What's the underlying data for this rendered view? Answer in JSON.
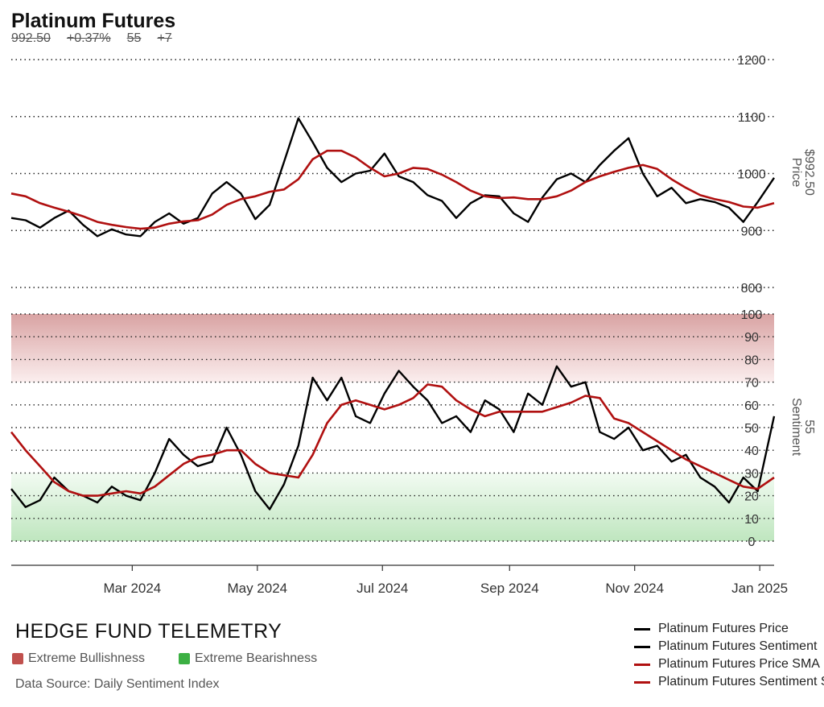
{
  "header": {
    "title": "Platinum Futures",
    "price": "992.50",
    "change_pct": "+0.37%",
    "sentiment": "55",
    "sentiment_change": "+7"
  },
  "footer": {
    "brand": "HEDGE FUND TELEMETRY",
    "key_bullish": "Extreme Bullishness",
    "key_bearish": "Extreme Bearishness",
    "key_bullish_color": "#c0504d",
    "key_bearish_color": "#3cb043",
    "source": "Data Source: Daily Sentiment Index"
  },
  "legend": [
    {
      "label": "Platinum Futures Price",
      "color": "#000000"
    },
    {
      "label": "Platinum Futures Sentiment",
      "color": "#000000"
    },
    {
      "label": "Platinum Futures Price SMA",
      "color": "#b01010"
    },
    {
      "label": "Platinum Futures Sentiment SMA",
      "color": "#b01010"
    }
  ],
  "chart_data": [
    {
      "type": "line",
      "panel": "price",
      "ylabel": "Price",
      "last_value_label": "$992.50",
      "ylim": [
        800,
        1200
      ],
      "yticks": [
        800,
        900,
        1000,
        1100,
        1200
      ],
      "x_ticks": [
        "Mar 2024",
        "May 2024",
        "Jul 2024",
        "Sep 2024",
        "Nov 2024",
        "Jan 2025"
      ],
      "x_tick_dates": [
        "2024-03-01",
        "2024-05-01",
        "2024-07-01",
        "2024-09-01",
        "2024-11-01",
        "2025-01-01"
      ],
      "x_range": [
        "2024-01-02",
        "2025-01-08"
      ],
      "grid": true,
      "series": [
        {
          "name": "Platinum Futures Price",
          "color": "#000000",
          "points": [
            [
              "2024-01-02",
              922
            ],
            [
              "2024-01-09",
              918
            ],
            [
              "2024-01-16",
              905
            ],
            [
              "2024-01-23",
              922
            ],
            [
              "2024-01-30",
              935
            ],
            [
              "2024-02-06",
              910
            ],
            [
              "2024-02-13",
              890
            ],
            [
              "2024-02-20",
              902
            ],
            [
              "2024-02-27",
              893
            ],
            [
              "2024-03-05",
              890
            ],
            [
              "2024-03-12",
              915
            ],
            [
              "2024-03-19",
              930
            ],
            [
              "2024-03-26",
              912
            ],
            [
              "2024-04-02",
              922
            ],
            [
              "2024-04-09",
              965
            ],
            [
              "2024-04-16",
              985
            ],
            [
              "2024-04-23",
              965
            ],
            [
              "2024-04-30",
              920
            ],
            [
              "2024-05-07",
              945
            ],
            [
              "2024-05-14",
              1020
            ],
            [
              "2024-05-21",
              1097
            ],
            [
              "2024-05-28",
              1055
            ],
            [
              "2024-06-04",
              1010
            ],
            [
              "2024-06-11",
              985
            ],
            [
              "2024-06-18",
              1000
            ],
            [
              "2024-06-25",
              1005
            ],
            [
              "2024-07-02",
              1035
            ],
            [
              "2024-07-09",
              995
            ],
            [
              "2024-07-16",
              985
            ],
            [
              "2024-07-23",
              962
            ],
            [
              "2024-07-30",
              952
            ],
            [
              "2024-08-06",
              922
            ],
            [
              "2024-08-13",
              948
            ],
            [
              "2024-08-20",
              962
            ],
            [
              "2024-08-27",
              960
            ],
            [
              "2024-09-03",
              930
            ],
            [
              "2024-09-10",
              915
            ],
            [
              "2024-09-17",
              958
            ],
            [
              "2024-09-24",
              990
            ],
            [
              "2024-10-01",
              1000
            ],
            [
              "2024-10-08",
              985
            ],
            [
              "2024-10-15",
              1015
            ],
            [
              "2024-10-22",
              1040
            ],
            [
              "2024-10-29",
              1062
            ],
            [
              "2024-11-05",
              1000
            ],
            [
              "2024-11-12",
              960
            ],
            [
              "2024-11-19",
              975
            ],
            [
              "2024-11-26",
              948
            ],
            [
              "2024-12-03",
              955
            ],
            [
              "2024-12-10",
              950
            ],
            [
              "2024-12-17",
              940
            ],
            [
              "2024-12-24",
              915
            ],
            [
              "2024-12-31",
              950
            ],
            [
              "2025-01-08",
              992.5
            ]
          ]
        },
        {
          "name": "Platinum Futures Price SMA",
          "color": "#b01010",
          "points": [
            [
              "2024-01-02",
              965
            ],
            [
              "2024-01-09",
              960
            ],
            [
              "2024-01-16",
              948
            ],
            [
              "2024-01-23",
              940
            ],
            [
              "2024-01-30",
              933
            ],
            [
              "2024-02-06",
              925
            ],
            [
              "2024-02-13",
              915
            ],
            [
              "2024-02-20",
              910
            ],
            [
              "2024-02-27",
              906
            ],
            [
              "2024-03-05",
              903
            ],
            [
              "2024-03-12",
              905
            ],
            [
              "2024-03-19",
              912
            ],
            [
              "2024-03-26",
              916
            ],
            [
              "2024-04-02",
              918
            ],
            [
              "2024-04-09",
              928
            ],
            [
              "2024-04-16",
              945
            ],
            [
              "2024-04-23",
              955
            ],
            [
              "2024-04-30",
              960
            ],
            [
              "2024-05-07",
              968
            ],
            [
              "2024-05-14",
              972
            ],
            [
              "2024-05-21",
              990
            ],
            [
              "2024-05-28",
              1025
            ],
            [
              "2024-06-04",
              1040
            ],
            [
              "2024-06-11",
              1040
            ],
            [
              "2024-06-18",
              1028
            ],
            [
              "2024-06-25",
              1010
            ],
            [
              "2024-07-02",
              995
            ],
            [
              "2024-07-09",
              1000
            ],
            [
              "2024-07-16",
              1010
            ],
            [
              "2024-07-23",
              1008
            ],
            [
              "2024-07-30",
              998
            ],
            [
              "2024-08-06",
              985
            ],
            [
              "2024-08-13",
              970
            ],
            [
              "2024-08-20",
              960
            ],
            [
              "2024-08-27",
              957
            ],
            [
              "2024-09-03",
              958
            ],
            [
              "2024-09-10",
              955
            ],
            [
              "2024-09-17",
              955
            ],
            [
              "2024-09-24",
              960
            ],
            [
              "2024-10-01",
              970
            ],
            [
              "2024-10-08",
              985
            ],
            [
              "2024-10-15",
              995
            ],
            [
              "2024-10-22",
              1003
            ],
            [
              "2024-10-29",
              1010
            ],
            [
              "2024-11-05",
              1015
            ],
            [
              "2024-11-12",
              1008
            ],
            [
              "2024-11-19",
              990
            ],
            [
              "2024-11-26",
              975
            ],
            [
              "2024-12-03",
              962
            ],
            [
              "2024-12-10",
              955
            ],
            [
              "2024-12-17",
              950
            ],
            [
              "2024-12-24",
              942
            ],
            [
              "2024-12-31",
              940
            ],
            [
              "2025-01-08",
              948
            ]
          ]
        }
      ]
    },
    {
      "type": "line",
      "panel": "sentiment",
      "ylabel": "Sentiment",
      "last_value_label": "55",
      "ylim": [
        0,
        100
      ],
      "yticks": [
        0,
        10,
        20,
        30,
        40,
        50,
        60,
        70,
        80,
        90,
        100
      ],
      "zones": [
        {
          "label": "Extreme Bullishness",
          "from": 70,
          "to": 100,
          "color": "#c0504d"
        },
        {
          "label": "Extreme Bearishness",
          "from": 0,
          "to": 30,
          "color": "#3cb043"
        }
      ],
      "x_range": [
        "2024-01-02",
        "2025-01-08"
      ],
      "grid": true,
      "series": [
        {
          "name": "Platinum Futures Sentiment",
          "color": "#000000",
          "points": [
            [
              "2024-01-02",
              23
            ],
            [
              "2024-01-09",
              15
            ],
            [
              "2024-01-16",
              18
            ],
            [
              "2024-01-23",
              28
            ],
            [
              "2024-01-30",
              22
            ],
            [
              "2024-02-06",
              20
            ],
            [
              "2024-02-13",
              17
            ],
            [
              "2024-02-20",
              24
            ],
            [
              "2024-02-27",
              20
            ],
            [
              "2024-03-05",
              18
            ],
            [
              "2024-03-12",
              30
            ],
            [
              "2024-03-19",
              45
            ],
            [
              "2024-03-26",
              38
            ],
            [
              "2024-04-02",
              33
            ],
            [
              "2024-04-09",
              35
            ],
            [
              "2024-04-16",
              50
            ],
            [
              "2024-04-23",
              38
            ],
            [
              "2024-04-30",
              22
            ],
            [
              "2024-05-07",
              14
            ],
            [
              "2024-05-14",
              25
            ],
            [
              "2024-05-21",
              42
            ],
            [
              "2024-05-28",
              72
            ],
            [
              "2024-06-04",
              62
            ],
            [
              "2024-06-11",
              72
            ],
            [
              "2024-06-18",
              55
            ],
            [
              "2024-06-25",
              52
            ],
            [
              "2024-07-02",
              65
            ],
            [
              "2024-07-09",
              75
            ],
            [
              "2024-07-16",
              68
            ],
            [
              "2024-07-23",
              62
            ],
            [
              "2024-07-30",
              52
            ],
            [
              "2024-08-06",
              55
            ],
            [
              "2024-08-13",
              48
            ],
            [
              "2024-08-20",
              62
            ],
            [
              "2024-08-27",
              58
            ],
            [
              "2024-09-03",
              48
            ],
            [
              "2024-09-10",
              65
            ],
            [
              "2024-09-17",
              60
            ],
            [
              "2024-09-24",
              77
            ],
            [
              "2024-10-01",
              68
            ],
            [
              "2024-10-08",
              70
            ],
            [
              "2024-10-15",
              48
            ],
            [
              "2024-10-22",
              45
            ],
            [
              "2024-10-29",
              50
            ],
            [
              "2024-11-05",
              40
            ],
            [
              "2024-11-12",
              42
            ],
            [
              "2024-11-19",
              35
            ],
            [
              "2024-11-26",
              38
            ],
            [
              "2024-12-03",
              28
            ],
            [
              "2024-12-10",
              24
            ],
            [
              "2024-12-17",
              17
            ],
            [
              "2024-12-24",
              28
            ],
            [
              "2024-12-31",
              22
            ],
            [
              "2025-01-08",
              55
            ]
          ]
        },
        {
          "name": "Platinum Futures Sentiment SMA",
          "color": "#b01010",
          "points": [
            [
              "2024-01-02",
              48
            ],
            [
              "2024-01-09",
              40
            ],
            [
              "2024-01-16",
              33
            ],
            [
              "2024-01-23",
              26
            ],
            [
              "2024-01-30",
              22
            ],
            [
              "2024-02-06",
              20
            ],
            [
              "2024-02-13",
              20
            ],
            [
              "2024-02-20",
              21
            ],
            [
              "2024-02-27",
              22
            ],
            [
              "2024-03-05",
              21
            ],
            [
              "2024-03-12",
              24
            ],
            [
              "2024-03-19",
              29
            ],
            [
              "2024-03-26",
              34
            ],
            [
              "2024-04-02",
              37
            ],
            [
              "2024-04-09",
              38
            ],
            [
              "2024-04-16",
              40
            ],
            [
              "2024-04-23",
              40
            ],
            [
              "2024-04-30",
              34
            ],
            [
              "2024-05-07",
              30
            ],
            [
              "2024-05-14",
              29
            ],
            [
              "2024-05-21",
              28
            ],
            [
              "2024-05-28",
              38
            ],
            [
              "2024-06-04",
              52
            ],
            [
              "2024-06-11",
              60
            ],
            [
              "2024-06-18",
              62
            ],
            [
              "2024-06-25",
              60
            ],
            [
              "2024-07-02",
              58
            ],
            [
              "2024-07-09",
              60
            ],
            [
              "2024-07-16",
              63
            ],
            [
              "2024-07-23",
              69
            ],
            [
              "2024-07-30",
              68
            ],
            [
              "2024-08-06",
              62
            ],
            [
              "2024-08-13",
              58
            ],
            [
              "2024-08-20",
              55
            ],
            [
              "2024-08-27",
              57
            ],
            [
              "2024-09-03",
              57
            ],
            [
              "2024-09-10",
              57
            ],
            [
              "2024-09-17",
              57
            ],
            [
              "2024-09-24",
              59
            ],
            [
              "2024-10-01",
              61
            ],
            [
              "2024-10-08",
              64
            ],
            [
              "2024-10-15",
              63
            ],
            [
              "2024-10-22",
              54
            ],
            [
              "2024-10-29",
              52
            ],
            [
              "2024-11-05",
              48
            ],
            [
              "2024-11-12",
              44
            ],
            [
              "2024-11-19",
              40
            ],
            [
              "2024-11-26",
              36
            ],
            [
              "2024-12-03",
              33
            ],
            [
              "2024-12-10",
              30
            ],
            [
              "2024-12-17",
              27
            ],
            [
              "2024-12-24",
              24
            ],
            [
              "2024-12-31",
              23
            ],
            [
              "2025-01-08",
              28
            ]
          ]
        }
      ]
    }
  ]
}
